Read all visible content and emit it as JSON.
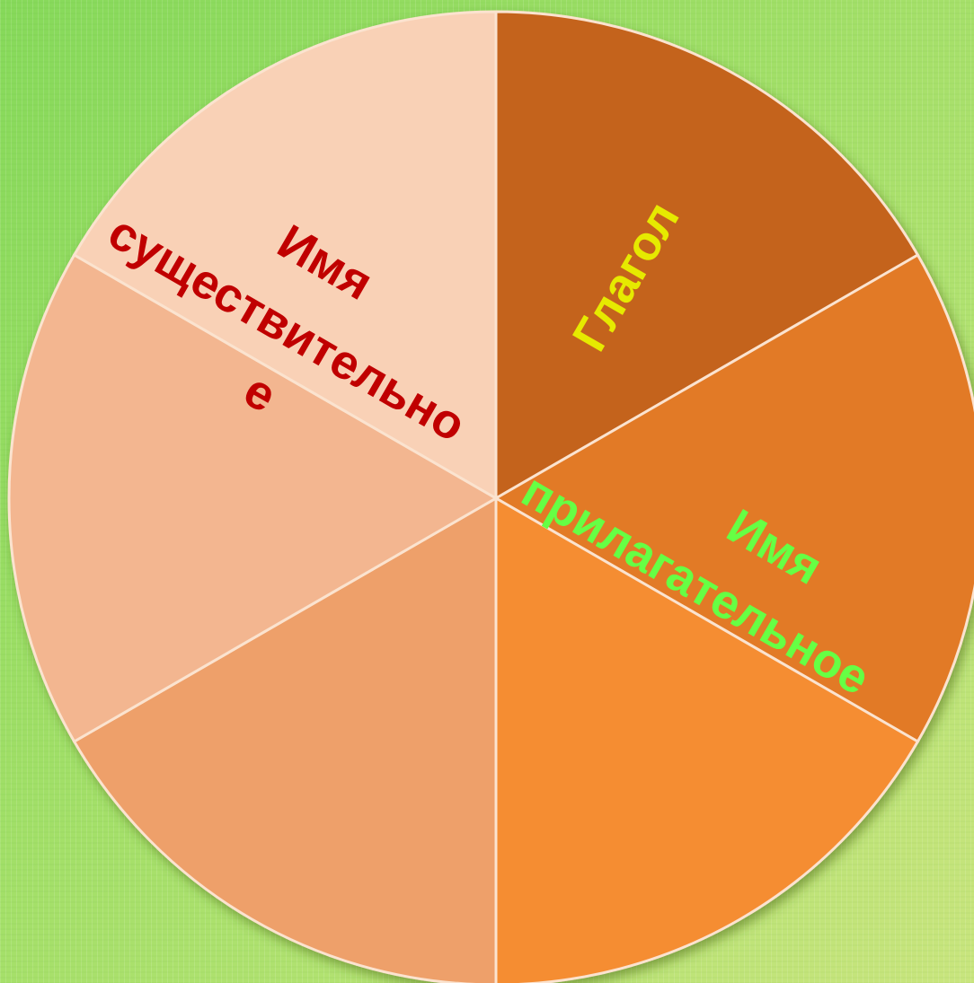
{
  "labels": {
    "verb": "Глагол",
    "adjective": [
      "Имя",
      "прилагательное"
    ],
    "noun": [
      "Имя",
      "существительно",
      "е"
    ]
  }
}
